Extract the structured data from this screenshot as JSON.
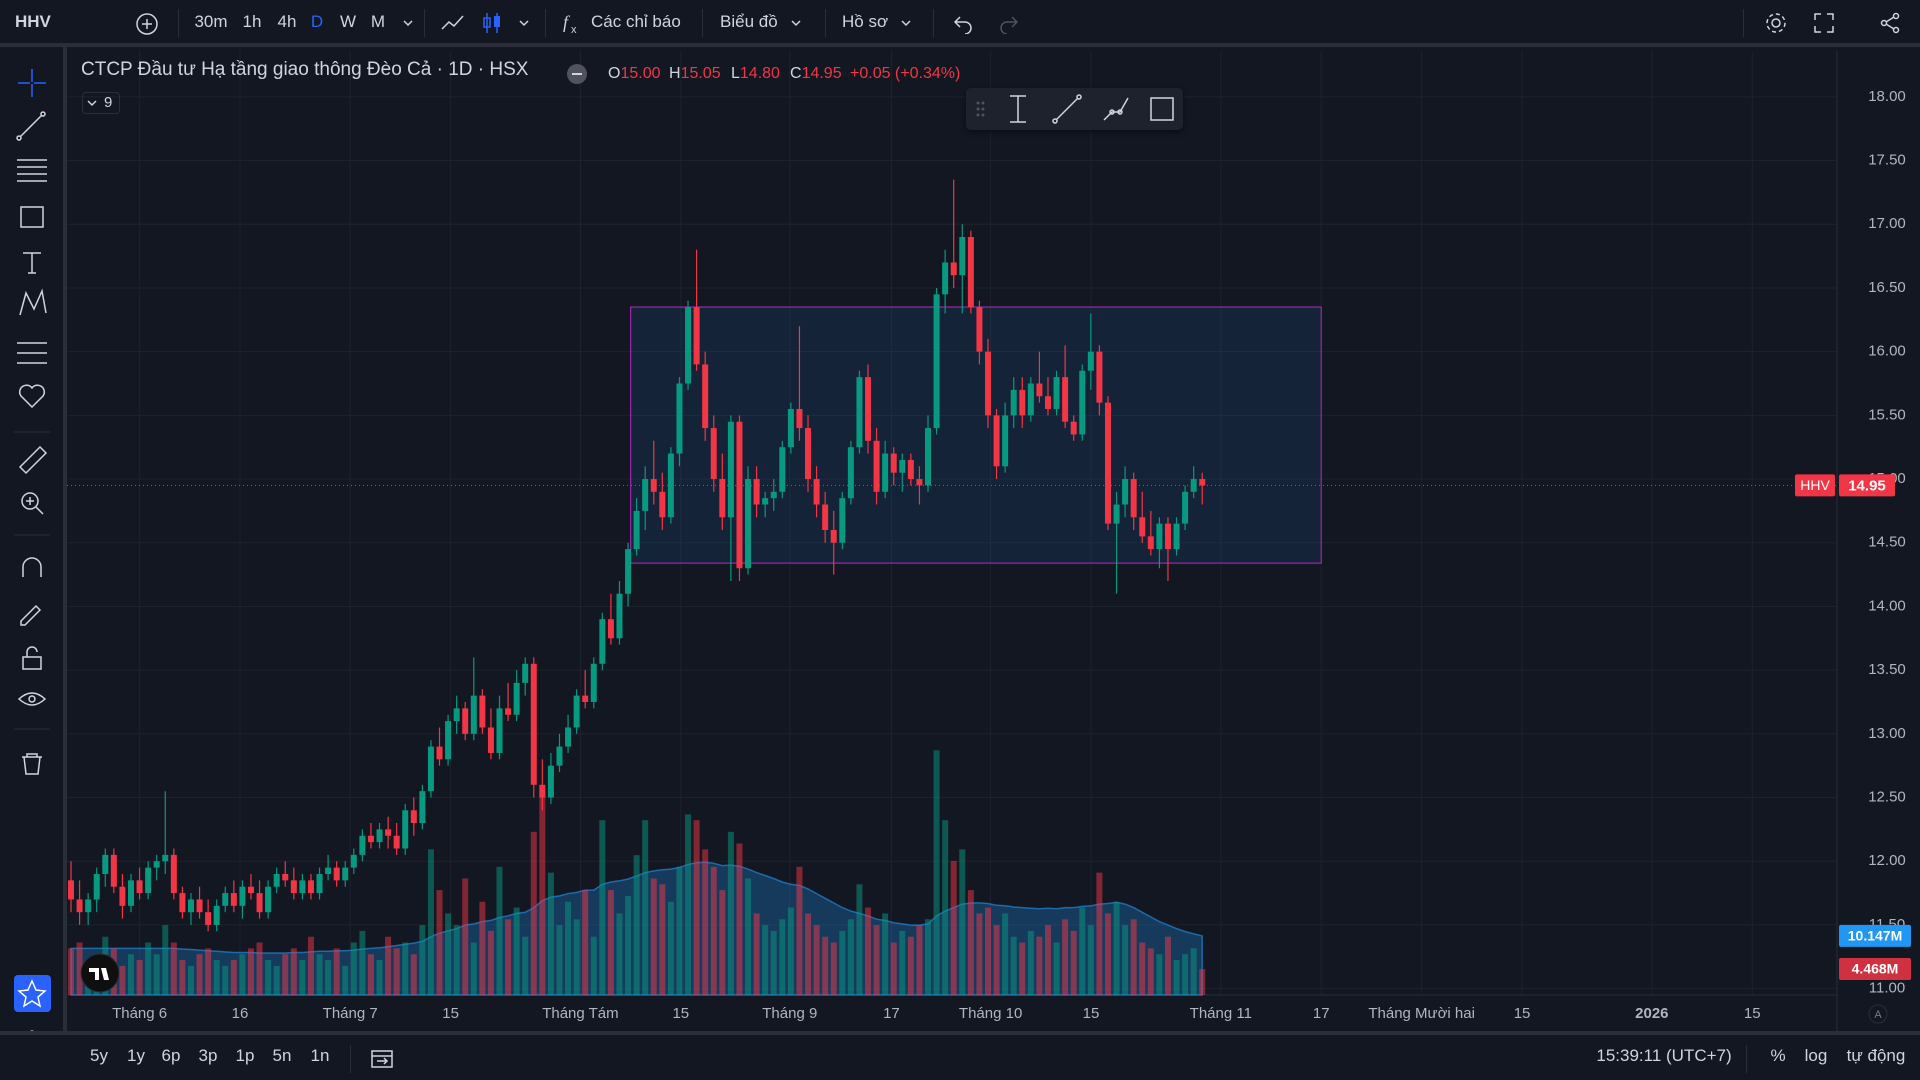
{
  "toolbar": {
    "symbol": "HHV",
    "intervals": [
      "30m",
      "1h",
      "4h",
      "D",
      "W",
      "M"
    ],
    "indicators": "Các chỉ báo",
    "chart_menu": "Biểu đồ",
    "profile": "Hồ sơ"
  },
  "legend": {
    "title": "CTCP Đầu tư Hạ tầng giao thông Đèo Cả · 1D · HSX",
    "indicator_count": "9",
    "ohlc": [
      {
        "key": "O",
        "value": "15.00"
      },
      {
        "key": "H",
        "value": "15.05"
      },
      {
        "key": "L",
        "value": "14.80"
      },
      {
        "key": "C",
        "value": "14.95"
      }
    ],
    "change": "+0.05 (+0.34%)"
  },
  "chart_data": {
    "type": "candlestick",
    "up_color": "#089981",
    "down_color": "#f23645",
    "ma_color": "#2196f3",
    "grid": true,
    "ylim": [
      10.95,
      18.36
    ],
    "yticks": [
      {
        "value": 11,
        "label": "11.00"
      },
      {
        "value": 11.5,
        "label": "11.50"
      },
      {
        "value": 12,
        "label": "12.00"
      },
      {
        "value": 12.5,
        "label": "12.50"
      },
      {
        "value": 13,
        "label": "13.00"
      },
      {
        "value": 13.5,
        "label": "13.50"
      },
      {
        "value": 14,
        "label": "14.00"
      },
      {
        "value": 14.5,
        "label": "14.50"
      },
      {
        "value": 15,
        "label": "15.00"
      },
      {
        "value": 15.5,
        "label": "15.50"
      },
      {
        "value": 16,
        "label": "16.00"
      },
      {
        "value": 16.5,
        "label": "16.50"
      },
      {
        "value": 17,
        "label": "17.00"
      },
      {
        "value": 17.5,
        "label": "17.50"
      },
      {
        "value": 18,
        "label": "18.00"
      }
    ],
    "y2lim": [
      0,
      162
    ],
    "x_labels": [
      "Tháng 6",
      "16",
      "Tháng 7",
      "15",
      "Tháng Tám",
      "15",
      "Tháng 9",
      "17",
      "Tháng 10",
      "15",
      "Tháng 11",
      "17",
      "Tháng Mười hai",
      "15",
      "2026",
      "15"
    ],
    "ohlc": [
      [
        11.85,
        12.0,
        11.6,
        11.7
      ],
      [
        11.7,
        11.85,
        11.5,
        11.6
      ],
      [
        11.6,
        11.75,
        11.5,
        11.7
      ],
      [
        11.7,
        11.95,
        11.6,
        11.9
      ],
      [
        11.9,
        12.1,
        11.8,
        12.05
      ],
      [
        12.05,
        12.1,
        11.75,
        11.8
      ],
      [
        11.8,
        11.9,
        11.55,
        11.65
      ],
      [
        11.65,
        11.9,
        11.6,
        11.85
      ],
      [
        11.85,
        11.95,
        11.7,
        11.75
      ],
      [
        11.75,
        12.0,
        11.7,
        11.95
      ],
      [
        11.95,
        12.05,
        11.85,
        12.0
      ],
      [
        12.0,
        12.55,
        11.9,
        12.05
      ],
      [
        12.05,
        12.1,
        11.7,
        11.75
      ],
      [
        11.75,
        11.8,
        11.55,
        11.6
      ],
      [
        11.6,
        11.75,
        11.5,
        11.7
      ],
      [
        11.7,
        11.8,
        11.55,
        11.6
      ],
      [
        11.6,
        11.7,
        11.45,
        11.5
      ],
      [
        11.5,
        11.7,
        11.45,
        11.65
      ],
      [
        11.65,
        11.8,
        11.6,
        11.75
      ],
      [
        11.75,
        11.85,
        11.6,
        11.65
      ],
      [
        11.65,
        11.85,
        11.55,
        11.8
      ],
      [
        11.8,
        11.9,
        11.7,
        11.75
      ],
      [
        11.75,
        11.85,
        11.55,
        11.6
      ],
      [
        11.6,
        11.85,
        11.55,
        11.8
      ],
      [
        11.8,
        11.95,
        11.75,
        11.9
      ],
      [
        11.9,
        12.0,
        11.8,
        11.85
      ],
      [
        11.85,
        11.95,
        11.7,
        11.75
      ],
      [
        11.75,
        11.9,
        11.7,
        11.85
      ],
      [
        11.85,
        11.9,
        11.7,
        11.75
      ],
      [
        11.75,
        11.95,
        11.7,
        11.9
      ],
      [
        11.9,
        12.05,
        11.85,
        11.95
      ],
      [
        11.95,
        12.0,
        11.8,
        11.85
      ],
      [
        11.85,
        12.0,
        11.8,
        11.95
      ],
      [
        11.95,
        12.1,
        11.9,
        12.05
      ],
      [
        12.05,
        12.25,
        12.0,
        12.2
      ],
      [
        12.2,
        12.3,
        12.1,
        12.15
      ],
      [
        12.15,
        12.3,
        12.1,
        12.25
      ],
      [
        12.25,
        12.35,
        12.1,
        12.2
      ],
      [
        12.2,
        12.3,
        12.05,
        12.1
      ],
      [
        12.1,
        12.45,
        12.05,
        12.4
      ],
      [
        12.4,
        12.5,
        12.2,
        12.3
      ],
      [
        12.3,
        12.6,
        12.25,
        12.55
      ],
      [
        12.55,
        12.95,
        12.5,
        12.9
      ],
      [
        12.9,
        13.05,
        12.75,
        12.8
      ],
      [
        12.8,
        13.15,
        12.75,
        13.1
      ],
      [
        13.1,
        13.3,
        13.0,
        13.2
      ],
      [
        13.2,
        13.25,
        12.95,
        13.0
      ],
      [
        13.0,
        13.6,
        12.95,
        13.3
      ],
      [
        13.3,
        13.35,
        13.0,
        13.05
      ],
      [
        13.05,
        13.2,
        12.8,
        12.85
      ],
      [
        12.85,
        13.3,
        12.8,
        13.2
      ],
      [
        13.2,
        13.4,
        13.1,
        13.15
      ],
      [
        13.15,
        13.5,
        13.1,
        13.4
      ],
      [
        13.4,
        13.6,
        13.3,
        13.55
      ],
      [
        13.55,
        13.6,
        12.5,
        12.6
      ],
      [
        12.6,
        12.8,
        12.4,
        12.5
      ],
      [
        12.5,
        12.85,
        12.45,
        12.75
      ],
      [
        12.75,
        13.0,
        12.7,
        12.9
      ],
      [
        12.9,
        13.15,
        12.85,
        13.05
      ],
      [
        13.05,
        13.35,
        13.0,
        13.3
      ],
      [
        13.3,
        13.5,
        13.2,
        13.25
      ],
      [
        13.25,
        13.6,
        13.2,
        13.55
      ],
      [
        13.55,
        13.95,
        13.5,
        13.9
      ],
      [
        13.9,
        14.1,
        13.7,
        13.75
      ],
      [
        13.75,
        14.2,
        13.7,
        14.1
      ],
      [
        14.1,
        14.5,
        14.0,
        14.45
      ],
      [
        14.45,
        14.85,
        14.4,
        14.75
      ],
      [
        14.75,
        15.1,
        14.6,
        15.0
      ],
      [
        15.0,
        15.3,
        14.8,
        14.9
      ],
      [
        14.9,
        15.05,
        14.6,
        14.7
      ],
      [
        14.7,
        15.25,
        14.65,
        15.2
      ],
      [
        15.2,
        15.8,
        15.1,
        15.75
      ],
      [
        15.75,
        16.4,
        15.7,
        16.35
      ],
      [
        16.35,
        16.8,
        15.85,
        15.9
      ],
      [
        15.9,
        16.0,
        15.3,
        15.4
      ],
      [
        15.4,
        15.5,
        14.9,
        15.0
      ],
      [
        15.0,
        15.2,
        14.6,
        14.7
      ],
      [
        14.7,
        15.5,
        14.2,
        15.45
      ],
      [
        15.45,
        15.5,
        14.2,
        14.3
      ],
      [
        14.3,
        15.1,
        14.25,
        15.0
      ],
      [
        15.0,
        15.1,
        14.7,
        14.8
      ],
      [
        14.8,
        14.9,
        14.7,
        14.85
      ],
      [
        14.85,
        15.0,
        14.75,
        14.9
      ],
      [
        14.9,
        15.3,
        14.85,
        15.25
      ],
      [
        15.25,
        15.6,
        15.2,
        15.55
      ],
      [
        15.55,
        16.2,
        15.3,
        15.4
      ],
      [
        15.4,
        15.5,
        14.9,
        15.0
      ],
      [
        15.0,
        15.1,
        14.7,
        14.8
      ],
      [
        14.8,
        14.9,
        14.5,
        14.6
      ],
      [
        14.6,
        14.75,
        14.25,
        14.5
      ],
      [
        14.5,
        14.9,
        14.45,
        14.85
      ],
      [
        14.85,
        15.3,
        14.8,
        15.25
      ],
      [
        15.25,
        15.85,
        15.2,
        15.8
      ],
      [
        15.8,
        15.9,
        15.2,
        15.3
      ],
      [
        15.3,
        15.4,
        14.8,
        14.9
      ],
      [
        14.9,
        15.3,
        14.85,
        15.2
      ],
      [
        15.2,
        15.25,
        14.95,
        15.05
      ],
      [
        15.05,
        15.2,
        14.9,
        15.15
      ],
      [
        15.15,
        15.2,
        14.95,
        15.0
      ],
      [
        15.0,
        15.1,
        14.8,
        14.95
      ],
      [
        14.95,
        15.5,
        14.9,
        15.4
      ],
      [
        15.4,
        16.5,
        15.35,
        16.45
      ],
      [
        16.45,
        16.8,
        16.3,
        16.7
      ],
      [
        16.7,
        17.35,
        16.5,
        16.6
      ],
      [
        16.6,
        17.0,
        16.3,
        16.9
      ],
      [
        16.9,
        16.95,
        16.3,
        16.35
      ],
      [
        16.35,
        16.4,
        15.9,
        16.0
      ],
      [
        16.0,
        16.1,
        15.4,
        15.5
      ],
      [
        15.5,
        15.55,
        15.0,
        15.1
      ],
      [
        15.1,
        15.6,
        15.05,
        15.5
      ],
      [
        15.5,
        15.8,
        15.4,
        15.7
      ],
      [
        15.7,
        15.8,
        15.4,
        15.5
      ],
      [
        15.5,
        15.8,
        15.45,
        15.75
      ],
      [
        15.75,
        16.0,
        15.6,
        15.65
      ],
      [
        15.65,
        15.8,
        15.5,
        15.55
      ],
      [
        15.55,
        15.85,
        15.5,
        15.8
      ],
      [
        15.8,
        16.05,
        15.4,
        15.45
      ],
      [
        15.45,
        15.5,
        15.3,
        15.35
      ],
      [
        15.35,
        15.9,
        15.3,
        15.85
      ],
      [
        15.85,
        16.3,
        15.7,
        16.0
      ],
      [
        16.0,
        16.05,
        15.5,
        15.6
      ],
      [
        15.6,
        15.65,
        14.6,
        14.65
      ],
      [
        14.65,
        14.9,
        14.1,
        14.8
      ],
      [
        14.8,
        15.1,
        14.7,
        15.0
      ],
      [
        15.0,
        15.05,
        14.6,
        14.7
      ],
      [
        14.7,
        14.9,
        14.5,
        14.55
      ],
      [
        14.55,
        14.75,
        14.4,
        14.45
      ],
      [
        14.45,
        14.7,
        14.3,
        14.65
      ],
      [
        14.65,
        14.7,
        14.2,
        14.45
      ],
      [
        14.45,
        14.7,
        14.4,
        14.65
      ],
      [
        14.65,
        14.95,
        14.6,
        14.9
      ],
      [
        14.9,
        15.1,
        14.85,
        15.0
      ],
      [
        15.0,
        15.05,
        14.8,
        14.95
      ]
    ],
    "volume": [
      8,
      9,
      6,
      7,
      10,
      8,
      5,
      7,
      6,
      9,
      7,
      12,
      9,
      6,
      5,
      7,
      8,
      6,
      5,
      6,
      7,
      8,
      9,
      6,
      5,
      7,
      8,
      6,
      10,
      7,
      6,
      8,
      5,
      9,
      11,
      7,
      6,
      10,
      8,
      9,
      7,
      12,
      25,
      18,
      14,
      12,
      20,
      9,
      16,
      11,
      22,
      13,
      15,
      10,
      28,
      35,
      21,
      12,
      16,
      13,
      18,
      10,
      30,
      18,
      14,
      17,
      24,
      30,
      20,
      19,
      16,
      22,
      31,
      30,
      25,
      22,
      18,
      28,
      26,
      20,
      14,
      12,
      11,
      13,
      15,
      22,
      14,
      12,
      10,
      9,
      11,
      13,
      19,
      15,
      12,
      14,
      9,
      11,
      10,
      12,
      13,
      42,
      30,
      23,
      25,
      18,
      14,
      15,
      12,
      14,
      10,
      9,
      11,
      10,
      12,
      9,
      13,
      11,
      15,
      12,
      21,
      14,
      16,
      12,
      13,
      9,
      8,
      7,
      10,
      6,
      7,
      8,
      4.468
    ],
    "volume_ma": [
      8,
      8,
      8,
      8,
      8,
      8,
      8,
      8,
      8,
      8,
      8,
      8,
      8,
      7.9,
      7.8,
      7.7,
      7.6,
      7.5,
      7.4,
      7.3,
      7.3,
      7.3,
      7.2,
      7.2,
      7.2,
      7.2,
      7.3,
      7.3,
      7.4,
      7.5,
      7.5,
      7.6,
      7.6,
      7.7,
      7.9,
      8,
      8.1,
      8.3,
      8.5,
      8.7,
      8.9,
      9.2,
      10,
      10.6,
      11,
      11.4,
      12,
      12.2,
      12.6,
      12.8,
      13.3,
      13.6,
      14,
      14.2,
      15,
      16.2,
      16.8,
      17,
      17.4,
      17.6,
      18,
      18,
      19,
      19.4,
      19.6,
      19.9,
      20.4,
      21,
      21.3,
      21.5,
      21.6,
      21.9,
      22.4,
      22.7,
      22.8,
      22.6,
      22.2,
      22.3,
      22.1,
      21.6,
      21,
      20.5,
      20,
      19.4,
      19,
      18.8,
      18.2,
      17.4,
      16.6,
      15.8,
      15,
      14.4,
      14,
      13.6,
      13,
      12.8,
      12.4,
      12.2,
      12,
      12,
      12.2,
      13.6,
      14.4,
      15,
      15.6,
      15.8,
      15.8,
      15.7,
      15.4,
      15.3,
      15.1,
      15,
      14.9,
      14.8,
      14.9,
      14.8,
      15,
      15,
      15.2,
      15.3,
      15.6,
      15.7,
      15.9,
      15.6,
      15,
      14.2,
      13.4,
      12.6,
      12,
      11.4,
      10.9,
      10.5,
      10.147
    ],
    "last_labels": {
      "price": "14.95",
      "volume": "4.468M",
      "volume_ma": "10.147M"
    },
    "box": {
      "high": 16.35,
      "low": 14.34,
      "color": "#9c27b0"
    }
  },
  "bottombar": {
    "ranges": [
      "5y",
      "1y",
      "6p",
      "3p",
      "1p",
      "5n",
      "1n"
    ],
    "clock": "15:39:11 (UTC+7)",
    "percent": "%",
    "log": "log",
    "auto": "tự động",
    "axis_mode": "A"
  }
}
